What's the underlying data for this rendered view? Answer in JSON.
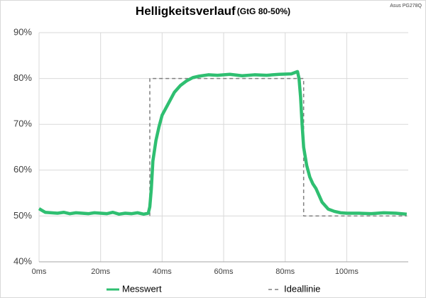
{
  "chart_data": {
    "type": "line",
    "title": "Helligkeitsverlauf",
    "subtitle": "(GtG 80-50%)",
    "annotation": "Asus PG278Q",
    "xlim": [
      0,
      120
    ],
    "ylim": [
      40,
      90
    ],
    "xticks": [
      {
        "value": 0,
        "label": "0ms"
      },
      {
        "value": 20,
        "label": "20ms"
      },
      {
        "value": 40,
        "label": "40ms"
      },
      {
        "value": 60,
        "label": "60ms"
      },
      {
        "value": 80,
        "label": "80ms"
      },
      {
        "value": 100,
        "label": "100ms"
      }
    ],
    "yticks": [
      {
        "value": 40,
        "label": "40%"
      },
      {
        "value": 50,
        "label": "50%"
      },
      {
        "value": 60,
        "label": "60%"
      },
      {
        "value": 70,
        "label": "70%"
      },
      {
        "value": 80,
        "label": "80%"
      },
      {
        "value": 90,
        "label": "90%"
      }
    ],
    "grid": true,
    "series": [
      {
        "name": "Messwert",
        "color": "#2fbf71",
        "dash": false,
        "x": [
          0,
          1,
          2,
          4,
          6,
          8,
          10,
          12,
          14,
          16,
          18,
          20,
          22,
          24,
          26,
          28,
          30,
          32,
          34,
          35.5,
          36,
          36.5,
          37,
          38,
          39,
          40,
          42,
          44,
          46,
          48,
          50,
          52,
          55,
          58,
          62,
          66,
          70,
          74,
          78,
          82,
          84,
          84.5,
          85,
          85.5,
          86,
          87,
          88,
          89,
          90,
          91,
          92,
          94,
          96,
          98,
          100,
          104,
          108,
          112,
          116,
          119.5
        ],
        "values": [
          51.6,
          51.2,
          50.8,
          50.7,
          50.6,
          50.8,
          50.5,
          50.7,
          50.6,
          50.5,
          50.7,
          50.6,
          50.5,
          50.8,
          50.4,
          50.6,
          50.5,
          50.7,
          50.4,
          50.6,
          52,
          56,
          62,
          66.5,
          69.5,
          72,
          74.5,
          77,
          78.5,
          79.5,
          80.2,
          80.5,
          80.8,
          80.7,
          80.9,
          80.6,
          80.8,
          80.7,
          80.9,
          81,
          81.5,
          80,
          76,
          70,
          65,
          61,
          58.5,
          57,
          56,
          54.5,
          53,
          51.5,
          51,
          50.7,
          50.6,
          50.6,
          50.5,
          50.7,
          50.6,
          50.4
        ]
      },
      {
        "name": "Ideallinie",
        "color": "#7f7f7f",
        "dash": true,
        "x": [
          36,
          36,
          86,
          86,
          119.5
        ],
        "values": [
          50,
          80,
          80,
          50,
          50
        ]
      }
    ]
  }
}
